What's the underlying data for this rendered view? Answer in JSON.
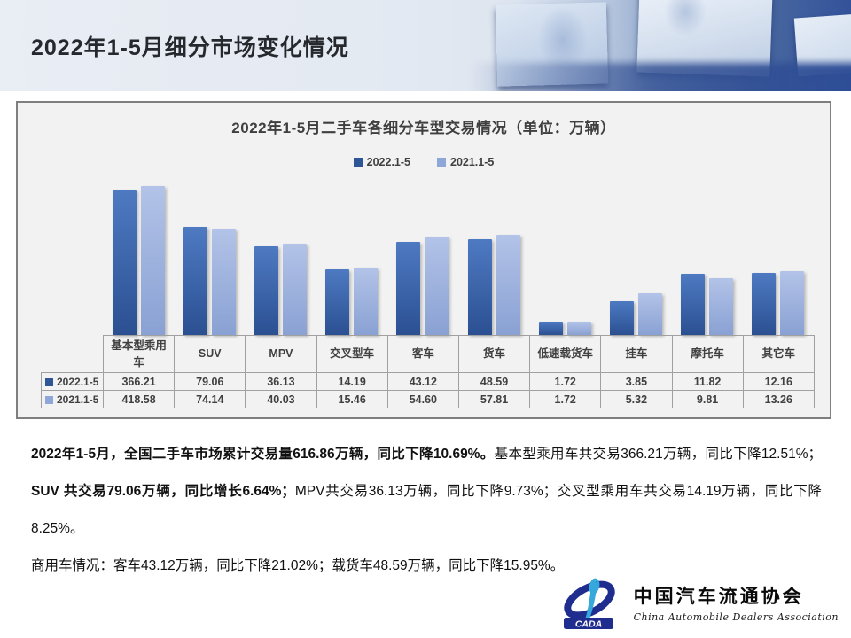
{
  "header": {
    "title": "2022年1-5月细分市场变化情况"
  },
  "chart_data": {
    "type": "bar",
    "title": "2022年1-5月二手车各细分车型交易情况（单位：万辆）",
    "unit": "万辆",
    "categories": [
      "基本型乘用车",
      "SUV",
      "MPV",
      "交叉型车",
      "客车",
      "货车",
      "低速载货车",
      "挂车",
      "摩托车",
      "其它车"
    ],
    "series": [
      {
        "name": "2022.1-5",
        "color": "#2e5697",
        "grad_top": "#4e7ac2",
        "grad_bottom": "#2b5092",
        "values": [
          366.21,
          79.06,
          36.13,
          14.19,
          43.12,
          48.59,
          1.72,
          3.85,
          11.82,
          12.16
        ]
      },
      {
        "name": "2021.1-5",
        "color": "#8ea7d8",
        "grad_top": "#b3c3e8",
        "grad_bottom": "#89a1d3",
        "values": [
          418.58,
          74.14,
          40.03,
          15.46,
          54.6,
          57.81,
          1.72,
          5.32,
          9.81,
          13.26
        ]
      }
    ],
    "xlabel": "",
    "ylabel": "",
    "scale": "log10",
    "axis_visible": false,
    "grid": false,
    "legend_position": "top",
    "data_table_shown": true,
    "value_format": "0.00"
  },
  "body": {
    "paragraphs": [
      {
        "runs": [
          {
            "text": "2022年1-5月，全国二手车市场累计交易量616.86万辆，同比下降10.69%。",
            "bold": true
          },
          {
            "text": "基本型乘用车共交易366.21万辆，同比下降12.51%；",
            "bold": false
          },
          {
            "text": "SUV 共交易79.06万辆，同比增长6.64%；",
            "bold": true
          },
          {
            "text": "MPV共交易36.13万辆，同比下降9.73%；交叉型乘用车共交易14.19万辆，同比下降8.25%。",
            "bold": false
          }
        ]
      },
      {
        "runs": [
          {
            "text": "商用车情况：客车43.12万辆，同比下降21.02%；载货车48.59万辆，同比下降15.95%。",
            "bold": false
          }
        ]
      }
    ]
  },
  "footer": {
    "emblem_acronym": "CADA",
    "org_cn": "中国汽车流通协会",
    "org_en": "China Automobile Dealers Association",
    "emblem_dark_blue": "#1e2d8e",
    "emblem_light_blue": "#35a8dc"
  }
}
